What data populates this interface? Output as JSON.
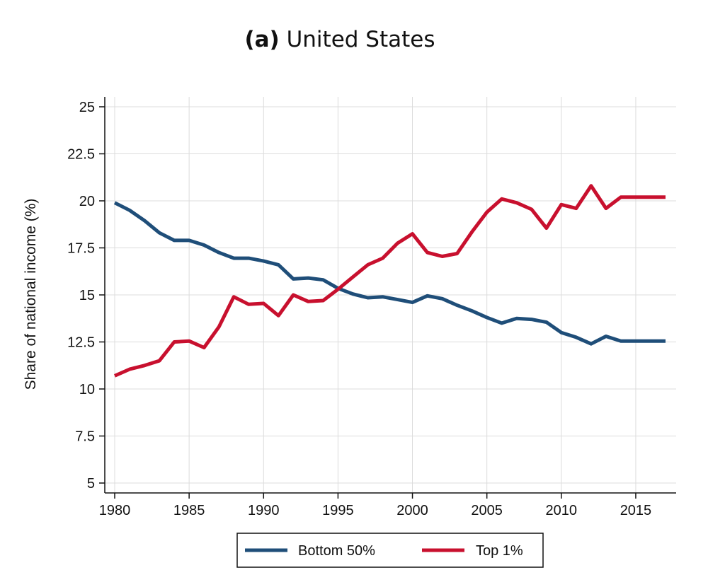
{
  "chart_data": {
    "type": "line",
    "title_tag": "(a)",
    "title_text": "United States",
    "xlabel": "",
    "ylabel": "Share of national income (%)",
    "xlim": [
      1980,
      2017
    ],
    "ylim": [
      5,
      25
    ],
    "xticks": [
      1980,
      1985,
      1990,
      1995,
      2000,
      2005,
      2010,
      2015
    ],
    "yticks": [
      5,
      7.5,
      10,
      12.5,
      15,
      17.5,
      20,
      22.5,
      25
    ],
    "ytick_labels": [
      "5",
      "7.5",
      "10",
      "12.5",
      "15",
      "17.5",
      "20",
      "22.5",
      "25"
    ],
    "grid": true,
    "legend_position": "bottom",
    "x": [
      1980,
      1981,
      1982,
      1983,
      1984,
      1985,
      1986,
      1987,
      1988,
      1989,
      1990,
      1991,
      1992,
      1993,
      1994,
      1995,
      1996,
      1997,
      1998,
      1999,
      2000,
      2001,
      2002,
      2003,
      2004,
      2005,
      2006,
      2007,
      2008,
      2009,
      2010,
      2011,
      2012,
      2013,
      2014,
      2015,
      2016,
      2017
    ],
    "series": [
      {
        "name": "Bottom 50%",
        "color": "#1f4e79",
        "values": [
          19.9,
          19.5,
          18.95,
          18.3,
          17.9,
          17.9,
          17.65,
          17.25,
          16.95,
          16.95,
          16.8,
          16.6,
          15.85,
          15.9,
          15.8,
          15.35,
          15.05,
          14.85,
          14.9,
          14.75,
          14.6,
          14.95,
          14.8,
          14.45,
          14.15,
          13.8,
          13.5,
          13.75,
          13.7,
          13.55,
          13.0,
          12.75,
          12.4,
          12.8,
          12.55,
          12.55,
          12.55,
          12.55
        ]
      },
      {
        "name": "Top 1%",
        "color": "#c8102e",
        "values": [
          10.7,
          11.05,
          11.25,
          11.5,
          12.5,
          12.55,
          12.2,
          13.3,
          14.9,
          14.5,
          14.55,
          13.9,
          15.0,
          14.65,
          14.7,
          15.3,
          15.95,
          16.6,
          16.95,
          17.75,
          18.25,
          17.25,
          17.05,
          17.2,
          18.35,
          19.4,
          20.1,
          19.9,
          19.55,
          18.55,
          19.8,
          19.6,
          20.8,
          19.6,
          20.2,
          20.2,
          20.2,
          20.2
        ]
      }
    ]
  }
}
